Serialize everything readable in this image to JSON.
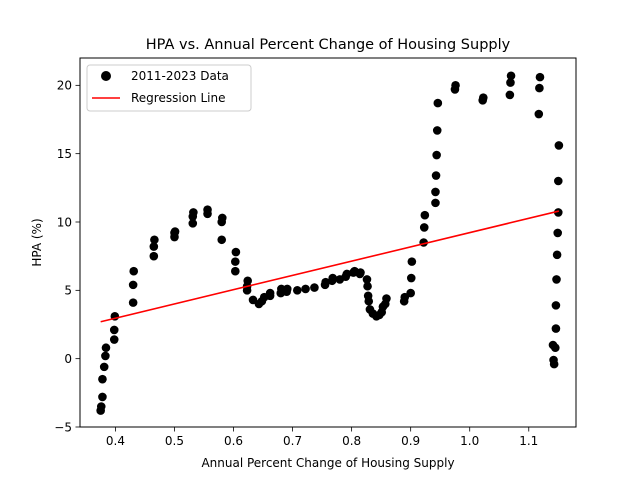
{
  "chart_data": {
    "type": "scatter",
    "title": "HPA vs. Annual Percent Change of Housing Supply",
    "xlabel": "Annual Percent Change of Housing Supply",
    "ylabel": "HPA (%)",
    "xlim": [
      0.34,
      1.18
    ],
    "ylim": [
      -5,
      22
    ],
    "xticks": [
      0.4,
      0.5,
      0.6,
      0.7,
      0.8,
      0.9,
      1.0,
      1.1
    ],
    "xtick_labels": [
      "0.4",
      "0.5",
      "0.6",
      "0.7",
      "0.8",
      "0.9",
      "1.0",
      "1.1"
    ],
    "yticks": [
      -5,
      0,
      5,
      10,
      15,
      20
    ],
    "ytick_labels": [
      "−5",
      "0",
      "5",
      "10",
      "15",
      "20"
    ],
    "grid": false,
    "legend_position": "top-left",
    "series": [
      {
        "name": "2011-2023 Data",
        "kind": "scatter",
        "color": "#000000",
        "points": [
          [
            0.375,
            -3.8
          ],
          [
            0.376,
            -3.5
          ],
          [
            0.378,
            -2.8
          ],
          [
            0.378,
            -1.5
          ],
          [
            0.381,
            -0.6
          ],
          [
            0.383,
            0.2
          ],
          [
            0.384,
            0.8
          ],
          [
            0.398,
            1.4
          ],
          [
            0.398,
            2.1
          ],
          [
            0.399,
            3.1
          ],
          [
            0.43,
            4.1
          ],
          [
            0.43,
            5.4
          ],
          [
            0.431,
            6.4
          ],
          [
            0.465,
            7.5
          ],
          [
            0.465,
            8.2
          ],
          [
            0.466,
            8.7
          ],
          [
            0.5,
            8.9
          ],
          [
            0.5,
            9.2
          ],
          [
            0.501,
            9.3
          ],
          [
            0.531,
            9.9
          ],
          [
            0.531,
            10.4
          ],
          [
            0.532,
            10.7
          ],
          [
            0.556,
            10.6
          ],
          [
            0.556,
            10.9
          ],
          [
            0.58,
            8.7
          ],
          [
            0.58,
            10.0
          ],
          [
            0.581,
            10.3
          ],
          [
            0.603,
            6.4
          ],
          [
            0.603,
            7.1
          ],
          [
            0.604,
            7.8
          ],
          [
            0.623,
            5.0
          ],
          [
            0.623,
            5.3
          ],
          [
            0.624,
            5.7
          ],
          [
            0.633,
            4.3
          ],
          [
            0.643,
            4.0
          ],
          [
            0.648,
            4.2
          ],
          [
            0.652,
            4.5
          ],
          [
            0.662,
            4.6
          ],
          [
            0.662,
            4.8
          ],
          [
            0.68,
            4.8
          ],
          [
            0.681,
            5.1
          ],
          [
            0.69,
            4.9
          ],
          [
            0.691,
            5.1
          ],
          [
            0.708,
            5.0
          ],
          [
            0.722,
            5.1
          ],
          [
            0.737,
            5.2
          ],
          [
            0.755,
            5.4
          ],
          [
            0.756,
            5.6
          ],
          [
            0.767,
            5.7
          ],
          [
            0.768,
            5.9
          ],
          [
            0.78,
            5.8
          ],
          [
            0.79,
            6.0
          ],
          [
            0.792,
            6.2
          ],
          [
            0.803,
            6.3
          ],
          [
            0.805,
            6.4
          ],
          [
            0.814,
            6.2
          ],
          [
            0.815,
            6.3
          ],
          [
            0.826,
            5.8
          ],
          [
            0.827,
            5.3
          ],
          [
            0.828,
            4.6
          ],
          [
            0.829,
            4.2
          ],
          [
            0.831,
            3.6
          ],
          [
            0.836,
            3.3
          ],
          [
            0.842,
            3.1
          ],
          [
            0.847,
            3.2
          ],
          [
            0.851,
            3.4
          ],
          [
            0.853,
            3.8
          ],
          [
            0.857,
            4.0
          ],
          [
            0.859,
            4.4
          ],
          [
            0.889,
            4.2
          ],
          [
            0.89,
            4.5
          ],
          [
            0.9,
            4.8
          ],
          [
            0.901,
            5.9
          ],
          [
            0.902,
            7.1
          ],
          [
            0.922,
            8.5
          ],
          [
            0.923,
            9.6
          ],
          [
            0.924,
            10.5
          ],
          [
            0.942,
            11.4
          ],
          [
            0.942,
            12.2
          ],
          [
            0.943,
            13.4
          ],
          [
            0.944,
            14.9
          ],
          [
            0.945,
            16.7
          ],
          [
            0.946,
            18.7
          ],
          [
            0.975,
            19.7
          ],
          [
            0.976,
            20.0
          ],
          [
            1.022,
            18.9
          ],
          [
            1.023,
            19.1
          ],
          [
            1.068,
            19.3
          ],
          [
            1.069,
            20.2
          ],
          [
            1.07,
            20.7
          ],
          [
            1.117,
            17.9
          ],
          [
            1.118,
            19.8
          ],
          [
            1.119,
            20.6
          ],
          [
            1.141,
            1.0
          ],
          [
            1.142,
            -0.1
          ],
          [
            1.143,
            -0.4
          ],
          [
            1.145,
            0.8
          ],
          [
            1.146,
            2.2
          ],
          [
            1.146,
            3.9
          ],
          [
            1.147,
            5.8
          ],
          [
            1.148,
            7.6
          ],
          [
            1.149,
            9.2
          ],
          [
            1.15,
            10.7
          ],
          [
            1.15,
            13.0
          ],
          [
            1.151,
            15.6
          ]
        ]
      },
      {
        "name": "Regression Line",
        "kind": "line",
        "color": "#ff0000",
        "points": [
          [
            0.375,
            2.7
          ],
          [
            1.151,
            10.8
          ]
        ]
      }
    ]
  }
}
